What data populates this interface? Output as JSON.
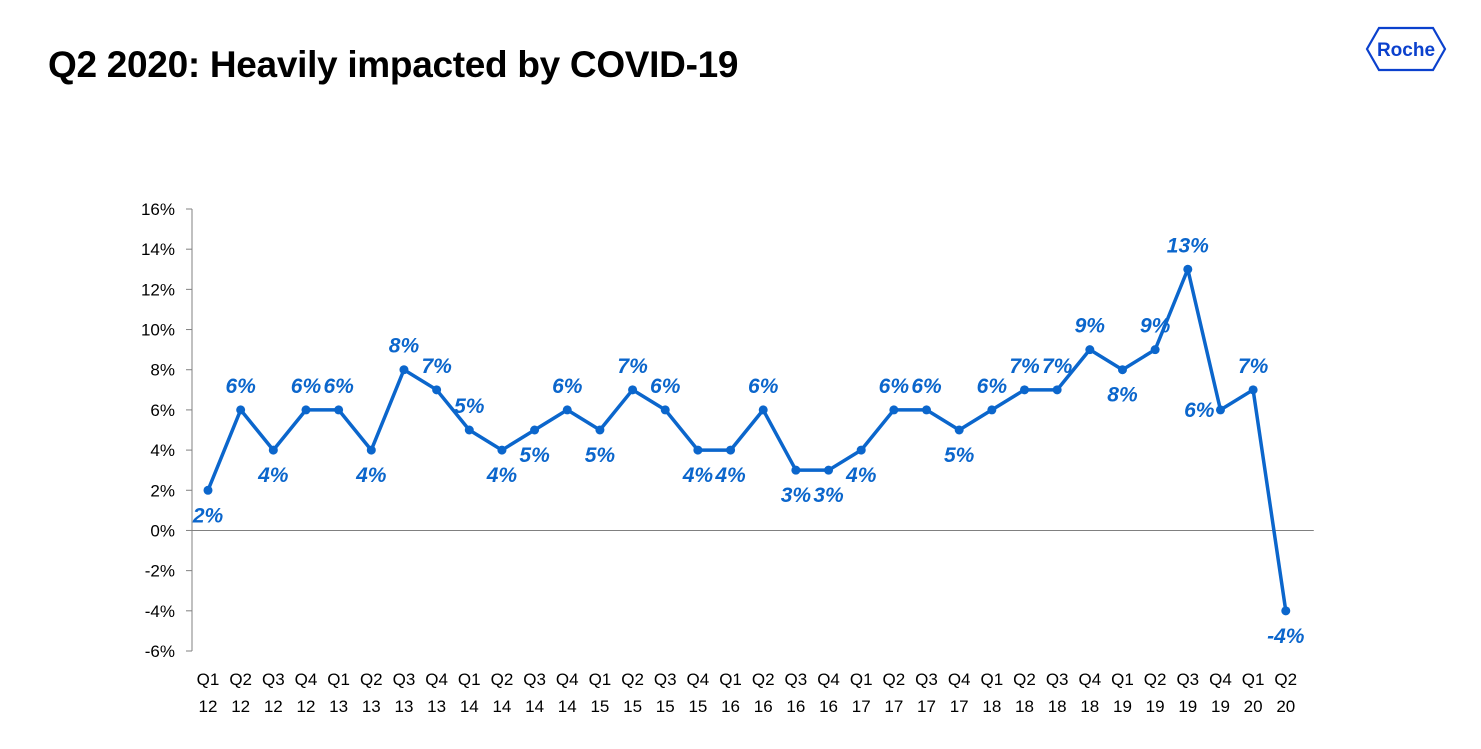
{
  "title": "Q2 2020: Heavily impacted by COVID-19",
  "logo": {
    "text": "Roche",
    "icon": "roche-hexagon-logo",
    "color": "#0b41cd"
  },
  "colors": {
    "series": "#0b66cc",
    "axis": "#808080",
    "text": "#000000"
  },
  "chart_data": {
    "type": "line",
    "title": "",
    "xlabel": "",
    "ylabel": "",
    "ylim": [
      -6,
      16
    ],
    "y_ticks": [
      "16%",
      "14%",
      "12%",
      "10%",
      "8%",
      "6%",
      "4%",
      "2%",
      "0%",
      "-2%",
      "-4%",
      "-6%"
    ],
    "y_tick_values": [
      16,
      14,
      12,
      10,
      8,
      6,
      4,
      2,
      0,
      -2,
      -4,
      -6
    ],
    "grid": false,
    "legend": "none",
    "categories": [
      {
        "q": "Q1",
        "y": "12"
      },
      {
        "q": "Q2",
        "y": "12"
      },
      {
        "q": "Q3",
        "y": "12"
      },
      {
        "q": "Q4",
        "y": "12"
      },
      {
        "q": "Q1",
        "y": "13"
      },
      {
        "q": "Q2",
        "y": "13"
      },
      {
        "q": "Q3",
        "y": "13"
      },
      {
        "q": "Q4",
        "y": "13"
      },
      {
        "q": "Q1",
        "y": "14"
      },
      {
        "q": "Q2",
        "y": "14"
      },
      {
        "q": "Q3",
        "y": "14"
      },
      {
        "q": "Q4",
        "y": "14"
      },
      {
        "q": "Q1",
        "y": "15"
      },
      {
        "q": "Q2",
        "y": "15"
      },
      {
        "q": "Q3",
        "y": "15"
      },
      {
        "q": "Q4",
        "y": "15"
      },
      {
        "q": "Q1",
        "y": "16"
      },
      {
        "q": "Q2",
        "y": "16"
      },
      {
        "q": "Q3",
        "y": "16"
      },
      {
        "q": "Q4",
        "y": "16"
      },
      {
        "q": "Q1",
        "y": "17"
      },
      {
        "q": "Q2",
        "y": "17"
      },
      {
        "q": "Q3",
        "y": "17"
      },
      {
        "q": "Q4",
        "y": "17"
      },
      {
        "q": "Q1",
        "y": "18"
      },
      {
        "q": "Q2",
        "y": "18"
      },
      {
        "q": "Q3",
        "y": "18"
      },
      {
        "q": "Q4",
        "y": "18"
      },
      {
        "q": "Q1",
        "y": "19"
      },
      {
        "q": "Q2",
        "y": "19"
      },
      {
        "q": "Q3",
        "y": "19"
      },
      {
        "q": "Q4",
        "y": "19"
      },
      {
        "q": "Q1",
        "y": "20"
      },
      {
        "q": "Q2",
        "y": "20"
      }
    ],
    "series": [
      {
        "values": [
          2,
          6,
          4,
          6,
          6,
          4,
          8,
          7,
          5,
          4,
          5,
          6,
          5,
          7,
          6,
          4,
          4,
          6,
          3,
          3,
          4,
          6,
          6,
          5,
          6,
          7,
          7,
          9,
          8,
          9,
          13,
          6,
          7,
          -4
        ],
        "labels": [
          "2%",
          "6%",
          "4%",
          "6%",
          "6%",
          "4%",
          "8%",
          "7%",
          "5%",
          "4%",
          "5%",
          "6%",
          "5%",
          "7%",
          "6%",
          "4%",
          "4%",
          "6%",
          "3%",
          "3%",
          "4%",
          "6%",
          "6%",
          "5%",
          "6%",
          "7%",
          "7%",
          "9%",
          "8%",
          "9%",
          "13%",
          "6%",
          "7%",
          "-4%"
        ],
        "label_positions": [
          "below",
          "above",
          "below",
          "above",
          "above",
          "below",
          "above",
          "above",
          "above",
          "below",
          "below",
          "above",
          "below",
          "above",
          "above",
          "below",
          "below",
          "above",
          "below",
          "below",
          "below",
          "above",
          "above",
          "below",
          "above",
          "above",
          "above",
          "above",
          "below",
          "above",
          "above",
          "left",
          "above",
          "below"
        ]
      }
    ]
  }
}
